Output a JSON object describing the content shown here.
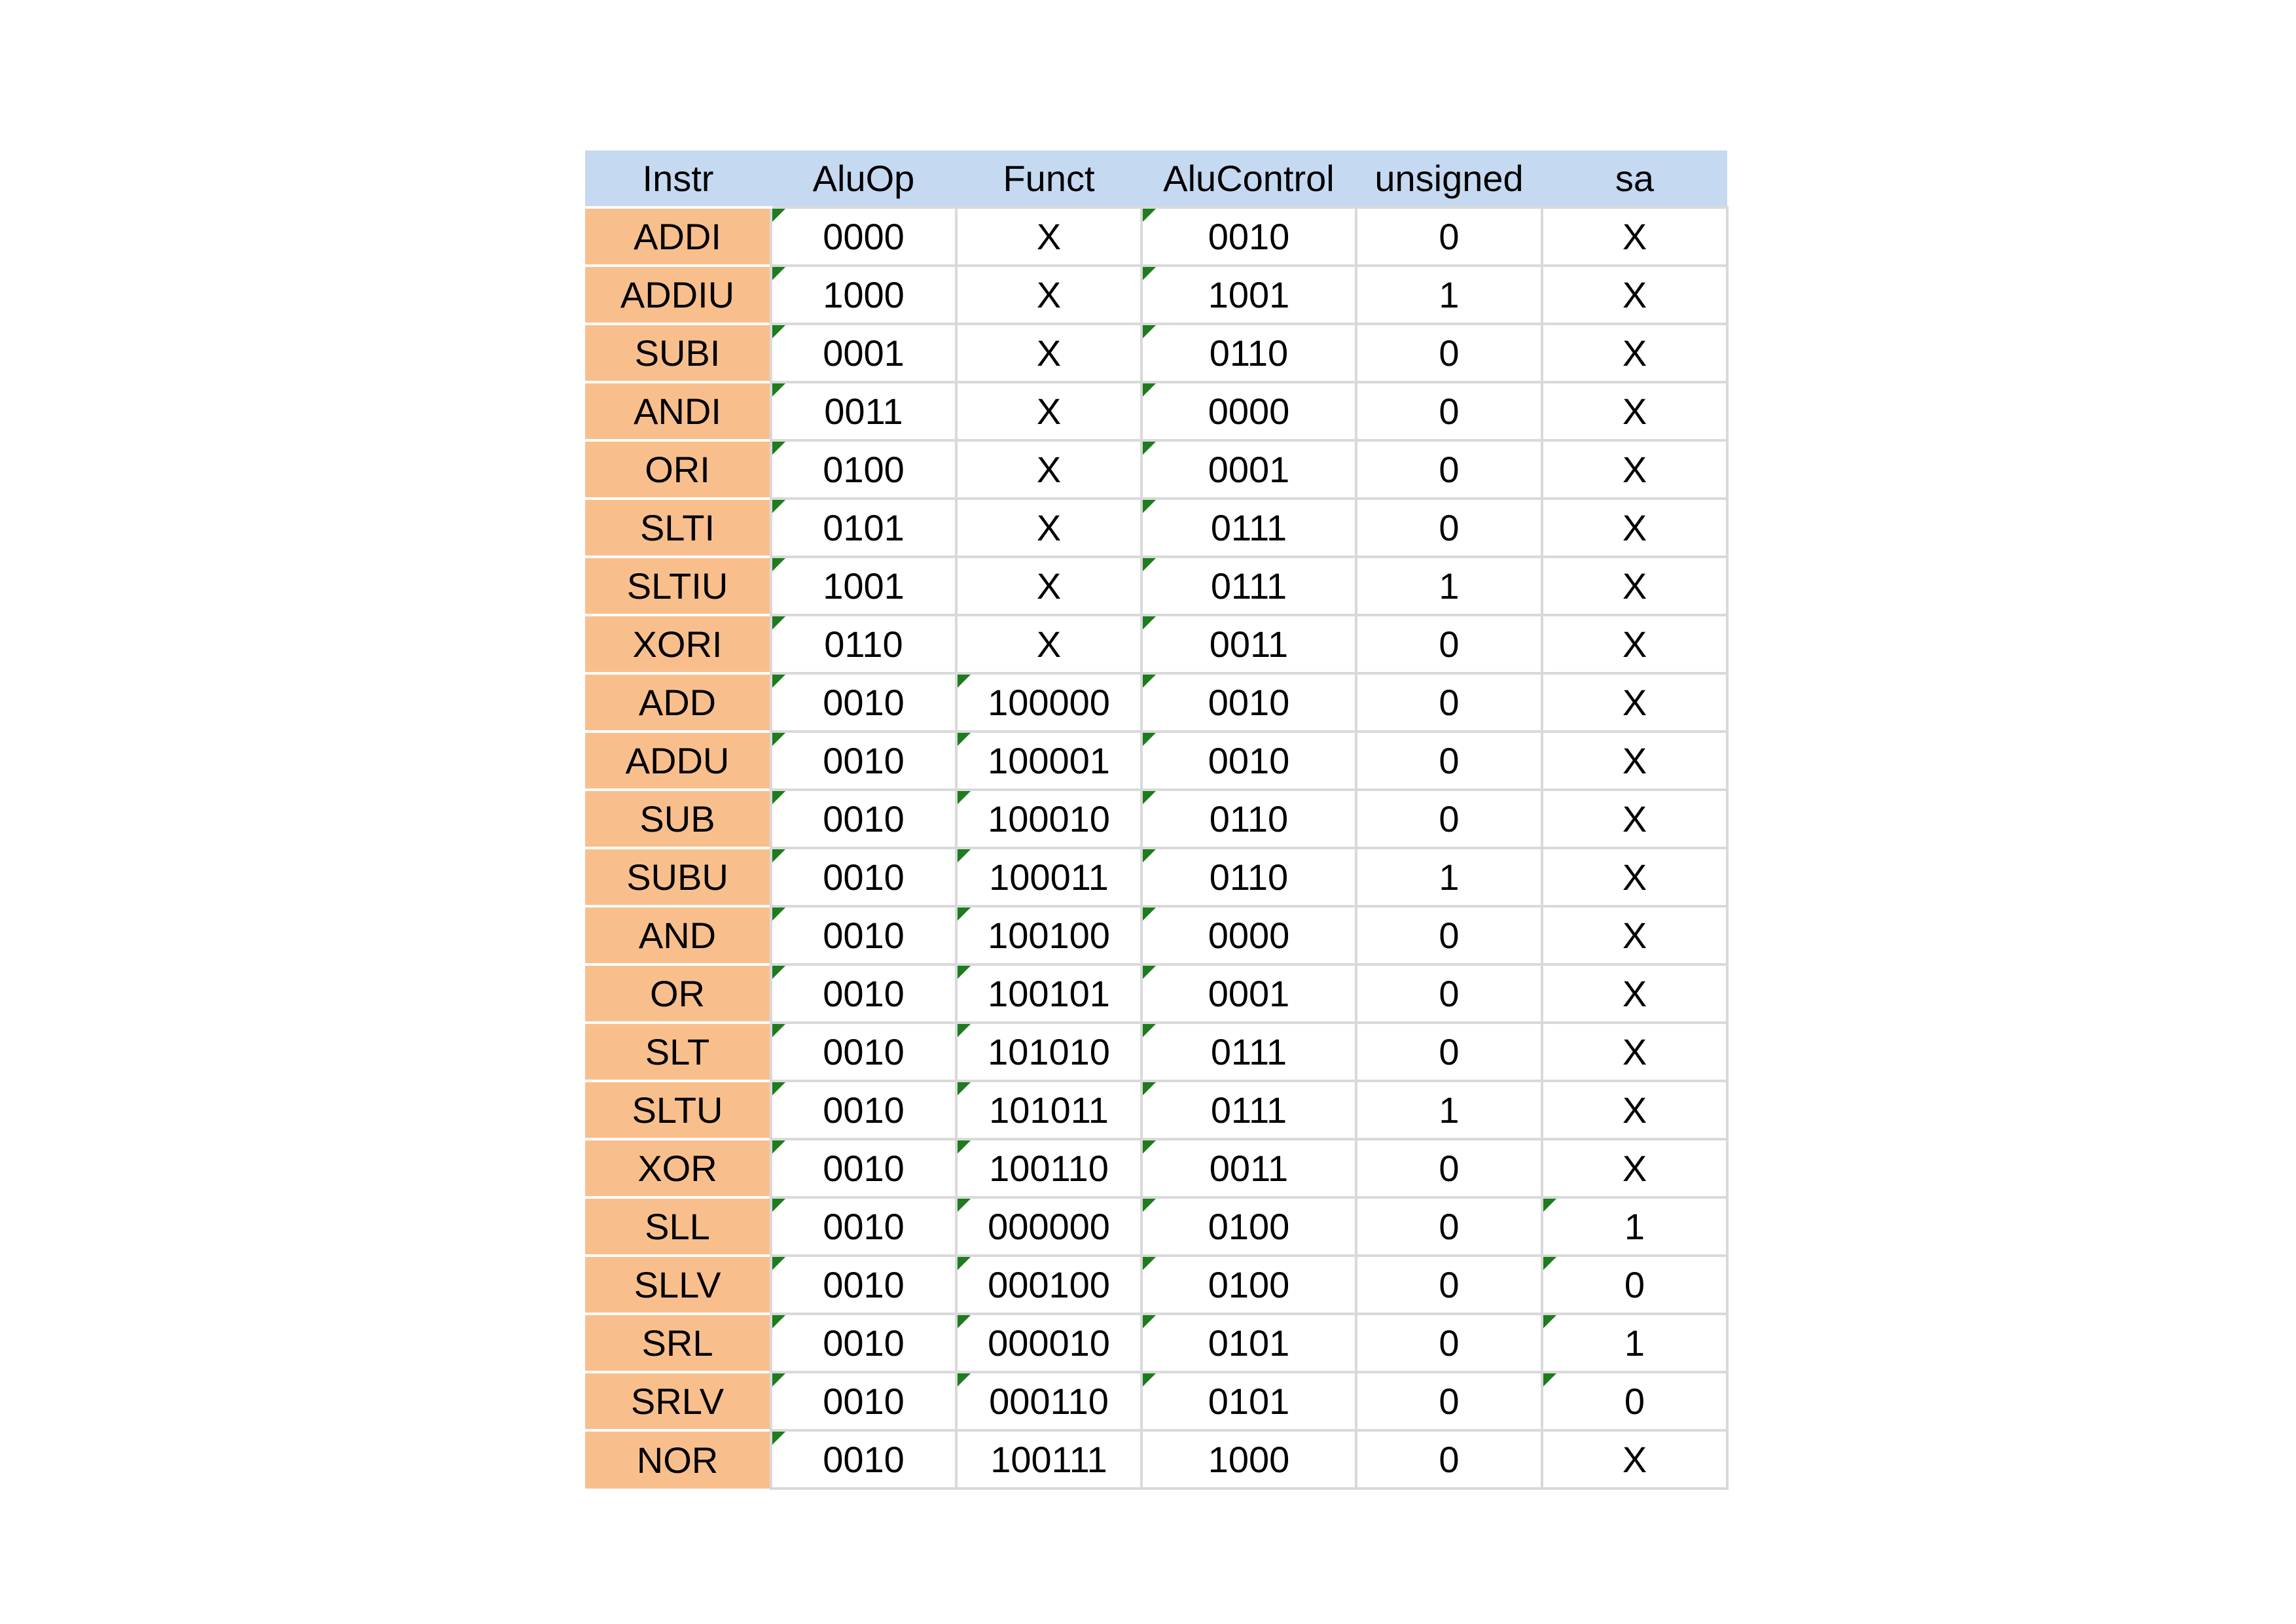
{
  "colors": {
    "header_bg": "#c5d9f1",
    "instr_bg": "#f8bf8d",
    "grid_line": "#d9d9d9",
    "corner_indicator": "#1e7b1e"
  },
  "table": {
    "headers": [
      "Instr",
      "AluOp",
      "Funct",
      "AluControl",
      "unsigned",
      "sa"
    ],
    "rows": [
      {
        "instr": "ADDI",
        "aluop": "0000",
        "funct": "X",
        "alucontrol": "0010",
        "unsigned": "0",
        "sa": "X",
        "marks": [
          1,
          3
        ]
      },
      {
        "instr": "ADDIU",
        "aluop": "1000",
        "funct": "X",
        "alucontrol": "1001",
        "unsigned": "1",
        "sa": "X",
        "marks": [
          1,
          3
        ]
      },
      {
        "instr": "SUBI",
        "aluop": "0001",
        "funct": "X",
        "alucontrol": "0110",
        "unsigned": "0",
        "sa": "X",
        "marks": [
          1,
          3
        ]
      },
      {
        "instr": "ANDI",
        "aluop": "0011",
        "funct": "X",
        "alucontrol": "0000",
        "unsigned": "0",
        "sa": "X",
        "marks": [
          1,
          3
        ]
      },
      {
        "instr": "ORI",
        "aluop": "0100",
        "funct": "X",
        "alucontrol": "0001",
        "unsigned": "0",
        "sa": "X",
        "marks": [
          1,
          3
        ]
      },
      {
        "instr": "SLTI",
        "aluop": "0101",
        "funct": "X",
        "alucontrol": "0111",
        "unsigned": "0",
        "sa": "X",
        "marks": [
          1,
          3
        ]
      },
      {
        "instr": "SLTIU",
        "aluop": "1001",
        "funct": "X",
        "alucontrol": "0111",
        "unsigned": "1",
        "sa": "X",
        "marks": [
          1,
          3
        ]
      },
      {
        "instr": "XORI",
        "aluop": "0110",
        "funct": "X",
        "alucontrol": "0011",
        "unsigned": "0",
        "sa": "X",
        "marks": [
          1,
          3
        ]
      },
      {
        "instr": "ADD",
        "aluop": "0010",
        "funct": "100000",
        "alucontrol": "0010",
        "unsigned": "0",
        "sa": "X",
        "marks": [
          1,
          2,
          3
        ]
      },
      {
        "instr": "ADDU",
        "aluop": "0010",
        "funct": "100001",
        "alucontrol": "0010",
        "unsigned": "0",
        "sa": "X",
        "marks": [
          1,
          2,
          3
        ]
      },
      {
        "instr": "SUB",
        "aluop": "0010",
        "funct": "100010",
        "alucontrol": "0110",
        "unsigned": "0",
        "sa": "X",
        "marks": [
          1,
          2,
          3
        ]
      },
      {
        "instr": "SUBU",
        "aluop": "0010",
        "funct": "100011",
        "alucontrol": "0110",
        "unsigned": "1",
        "sa": "X",
        "marks": [
          1,
          2,
          3
        ]
      },
      {
        "instr": "AND",
        "aluop": "0010",
        "funct": "100100",
        "alucontrol": "0000",
        "unsigned": "0",
        "sa": "X",
        "marks": [
          1,
          2,
          3
        ]
      },
      {
        "instr": "OR",
        "aluop": "0010",
        "funct": "100101",
        "alucontrol": "0001",
        "unsigned": "0",
        "sa": "X",
        "marks": [
          1,
          2,
          3
        ]
      },
      {
        "instr": "SLT",
        "aluop": "0010",
        "funct": "101010",
        "alucontrol": "0111",
        "unsigned": "0",
        "sa": "X",
        "marks": [
          1,
          2,
          3
        ]
      },
      {
        "instr": "SLTU",
        "aluop": "0010",
        "funct": "101011",
        "alucontrol": "0111",
        "unsigned": "1",
        "sa": "X",
        "marks": [
          1,
          2,
          3
        ]
      },
      {
        "instr": "XOR",
        "aluop": "0010",
        "funct": "100110",
        "alucontrol": "0011",
        "unsigned": "0",
        "sa": "X",
        "marks": [
          1,
          2,
          3
        ]
      },
      {
        "instr": "SLL",
        "aluop": "0010",
        "funct": "000000",
        "alucontrol": "0100",
        "unsigned": "0",
        "sa": "1",
        "marks": [
          1,
          2,
          3,
          5
        ]
      },
      {
        "instr": "SLLV",
        "aluop": "0010",
        "funct": "000100",
        "alucontrol": "0100",
        "unsigned": "0",
        "sa": "0",
        "marks": [
          1,
          2,
          3,
          5
        ]
      },
      {
        "instr": "SRL",
        "aluop": "0010",
        "funct": "000010",
        "alucontrol": "0101",
        "unsigned": "0",
        "sa": "1",
        "marks": [
          1,
          2,
          3,
          5
        ]
      },
      {
        "instr": "SRLV",
        "aluop": "0010",
        "funct": "000110",
        "alucontrol": "0101",
        "unsigned": "0",
        "sa": "0",
        "marks": [
          1,
          2,
          3,
          5
        ]
      },
      {
        "instr": "NOR",
        "aluop": "0010",
        "funct": "100111",
        "alucontrol": "1000",
        "unsigned": "0",
        "sa": "X",
        "marks": [
          1
        ]
      }
    ]
  }
}
